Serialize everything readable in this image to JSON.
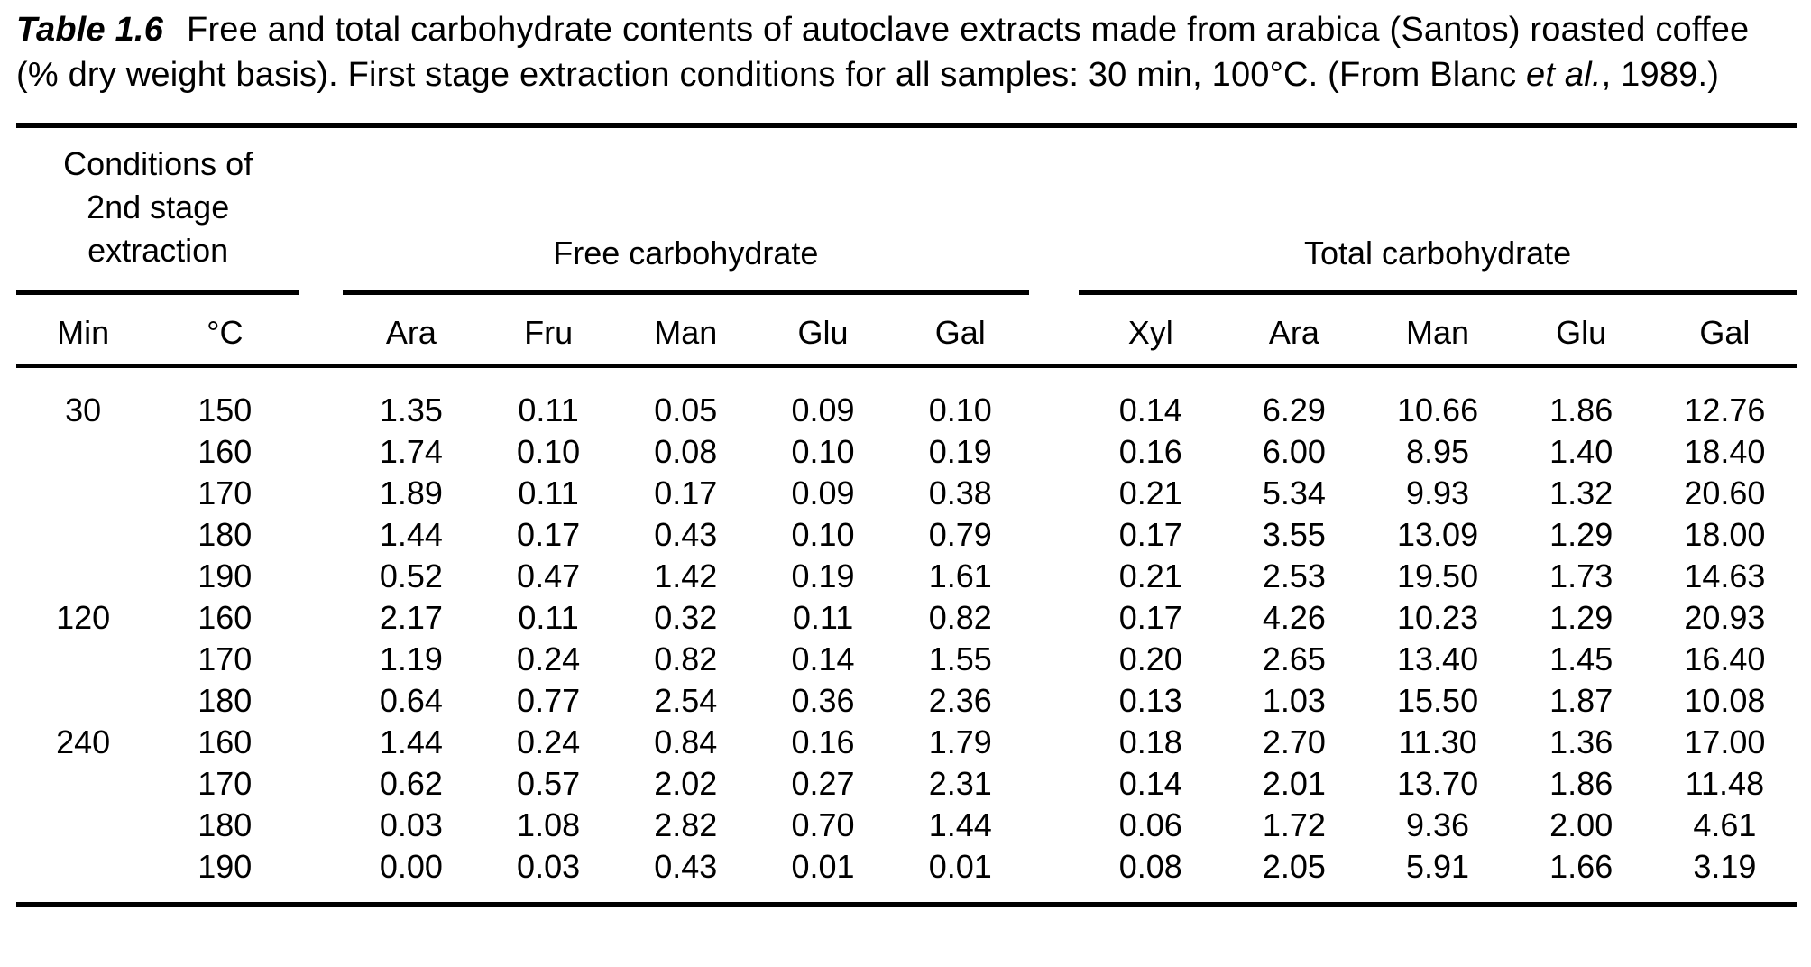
{
  "caption": {
    "label": "Table 1.6",
    "text": "Free and total carbohydrate contents of autoclave extracts made from arabica (Santos) roasted coffee (% dry weight basis). First stage extraction conditions for all samples: 30 min, 100°C. (From Blanc ",
    "citation_italic": "et al.",
    "text_end": ", 1989.)"
  },
  "table": {
    "group_headers": {
      "conditions": "Conditions of 2nd stage extraction",
      "free": "Free carbohydrate",
      "total": "Total carbohydrate"
    },
    "column_headers": [
      "Min",
      "°C",
      "Ara",
      "Fru",
      "Man",
      "Glu",
      "Gal",
      "Xyl",
      "Ara",
      "Man",
      "Glu",
      "Gal"
    ],
    "rows": [
      [
        "30",
        "150",
        "1.35",
        "0.11",
        "0.05",
        "0.09",
        "0.10",
        "0.14",
        "6.29",
        "10.66",
        "1.86",
        "12.76"
      ],
      [
        "",
        "160",
        "1.74",
        "0.10",
        "0.08",
        "0.10",
        "0.19",
        "0.16",
        "6.00",
        "8.95",
        "1.40",
        "18.40"
      ],
      [
        "",
        "170",
        "1.89",
        "0.11",
        "0.17",
        "0.09",
        "0.38",
        "0.21",
        "5.34",
        "9.93",
        "1.32",
        "20.60"
      ],
      [
        "",
        "180",
        "1.44",
        "0.17",
        "0.43",
        "0.10",
        "0.79",
        "0.17",
        "3.55",
        "13.09",
        "1.29",
        "18.00"
      ],
      [
        "",
        "190",
        "0.52",
        "0.47",
        "1.42",
        "0.19",
        "1.61",
        "0.21",
        "2.53",
        "19.50",
        "1.73",
        "14.63"
      ],
      [
        "120",
        "160",
        "2.17",
        "0.11",
        "0.32",
        "0.11",
        "0.82",
        "0.17",
        "4.26",
        "10.23",
        "1.29",
        "20.93"
      ],
      [
        "",
        "170",
        "1.19",
        "0.24",
        "0.82",
        "0.14",
        "1.55",
        "0.20",
        "2.65",
        "13.40",
        "1.45",
        "16.40"
      ],
      [
        "",
        "180",
        "0.64",
        "0.77",
        "2.54",
        "0.36",
        "2.36",
        "0.13",
        "1.03",
        "15.50",
        "1.87",
        "10.08"
      ],
      [
        "240",
        "160",
        "1.44",
        "0.24",
        "0.84",
        "0.16",
        "1.79",
        "0.18",
        "2.70",
        "11.30",
        "1.36",
        "17.00"
      ],
      [
        "",
        "170",
        "0.62",
        "0.57",
        "2.02",
        "0.27",
        "2.31",
        "0.14",
        "2.01",
        "13.70",
        "1.86",
        "11.48"
      ],
      [
        "",
        "180",
        "0.03",
        "1.08",
        "2.82",
        "0.70",
        "1.44",
        "0.06",
        "1.72",
        "9.36",
        "2.00",
        "4.61"
      ],
      [
        "",
        "190",
        "0.00",
        "0.03",
        "0.43",
        "0.01",
        "0.01",
        "0.08",
        "2.05",
        "5.91",
        "1.66",
        "3.19"
      ]
    ]
  }
}
